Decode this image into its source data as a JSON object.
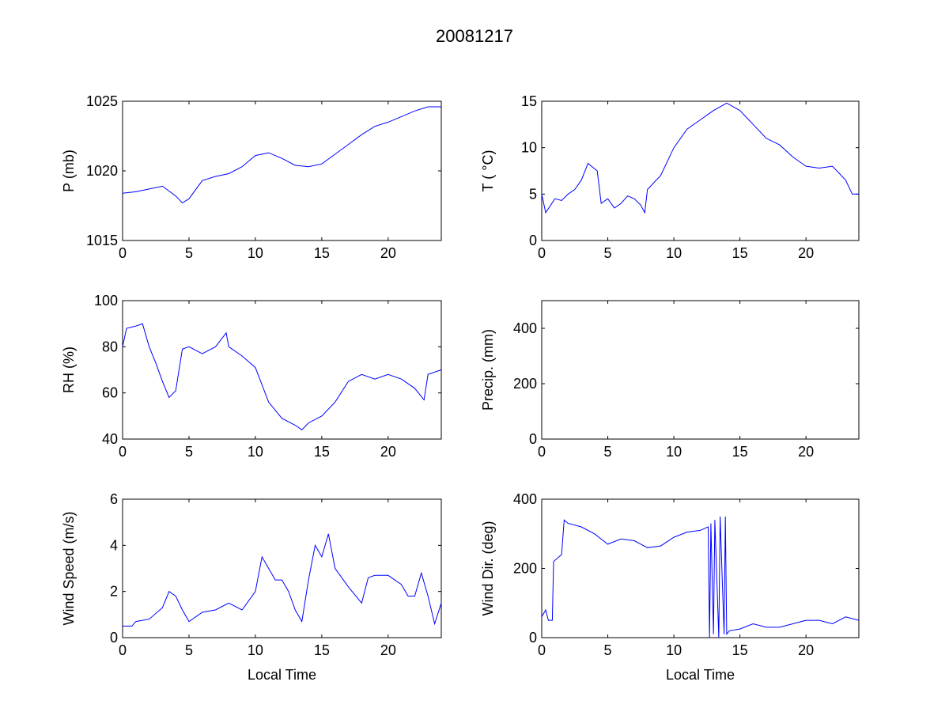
{
  "chart_data": {
    "title": "20081217",
    "type": "line",
    "line_color": "#0000ff",
    "subplots": [
      {
        "id": "pressure",
        "ylabel": "P (mb)",
        "xlabel": "",
        "xlim": [
          0,
          24
        ],
        "ylim": [
          1015,
          1025
        ],
        "xticks": [
          0,
          5,
          10,
          15,
          20
        ],
        "yticks": [
          1015,
          1020,
          1025
        ],
        "x": [
          0,
          1,
          2,
          3,
          4,
          4.5,
          5,
          6,
          7,
          8,
          9,
          10,
          11,
          12,
          13,
          14,
          15,
          16,
          17,
          18,
          19,
          20,
          21,
          22,
          23,
          24
        ],
        "y": [
          1018.4,
          1018.5,
          1018.7,
          1018.9,
          1018.2,
          1017.7,
          1018.0,
          1019.3,
          1019.6,
          1019.8,
          1020.3,
          1021.1,
          1021.3,
          1020.9,
          1020.4,
          1020.3,
          1020.5,
          1021.2,
          1021.9,
          1022.6,
          1023.2,
          1023.5,
          1023.9,
          1024.3,
          1024.6,
          1024.6
        ]
      },
      {
        "id": "temperature",
        "ylabel": "T ( °C)",
        "xlabel": "",
        "xlim": [
          0,
          24
        ],
        "ylim": [
          0,
          15
        ],
        "xticks": [
          0,
          5,
          10,
          15,
          20
        ],
        "yticks": [
          0,
          5,
          10,
          15
        ],
        "x": [
          0,
          0.3,
          1,
          1.5,
          2,
          2.5,
          3,
          3.5,
          4.2,
          4.5,
          5,
          5.5,
          6,
          6.5,
          7,
          7.5,
          7.8,
          8,
          9,
          10,
          11,
          12,
          13,
          14,
          15,
          16,
          17,
          18,
          19,
          20,
          21,
          22,
          23,
          23.5,
          24
        ],
        "y": [
          5,
          3,
          4.5,
          4.3,
          5,
          5.5,
          6.5,
          8.3,
          7.5,
          4,
          4.5,
          3.5,
          4,
          4.8,
          4.5,
          3.8,
          3,
          5.5,
          7,
          10,
          12,
          13,
          14,
          14.8,
          14,
          12.5,
          11,
          10.3,
          9,
          8,
          7.8,
          8,
          6.5,
          5,
          5
        ]
      },
      {
        "id": "humidity",
        "ylabel": "RH (%)",
        "xlabel": "",
        "xlim": [
          0,
          24
        ],
        "ylim": [
          40,
          100
        ],
        "xticks": [
          0,
          5,
          10,
          15,
          20
        ],
        "yticks": [
          40,
          60,
          80,
          100
        ],
        "x": [
          0,
          0.3,
          1,
          1.5,
          2,
          2.5,
          3,
          3.5,
          4,
          4.5,
          5,
          6,
          7,
          7.8,
          8,
          9,
          10,
          11,
          12,
          13,
          13.5,
          14,
          15,
          16,
          17,
          18,
          19,
          20,
          21,
          22,
          22.7,
          23,
          24
        ],
        "y": [
          80,
          88,
          89,
          90,
          80,
          73,
          65,
          58,
          61,
          79,
          80,
          77,
          80,
          86,
          80,
          76,
          71,
          56,
          49,
          46,
          44,
          47,
          50,
          56,
          65,
          68,
          66,
          68,
          66,
          62,
          57,
          68,
          70
        ]
      },
      {
        "id": "precipitation",
        "ylabel": "Precip. (mm)",
        "xlabel": "",
        "xlim": [
          0,
          24
        ],
        "ylim": [
          0,
          500
        ],
        "xticks": [
          0,
          5,
          10,
          15,
          20
        ],
        "yticks": [
          0,
          200,
          400
        ],
        "x": [],
        "y": []
      },
      {
        "id": "wind-speed",
        "ylabel": "Wind Speed (m/s)",
        "xlabel": "Local Time",
        "xlim": [
          0,
          24
        ],
        "ylim": [
          0,
          6
        ],
        "xticks": [
          0,
          5,
          10,
          15,
          20
        ],
        "yticks": [
          0,
          2,
          4,
          6
        ],
        "x": [
          0,
          0.7,
          1,
          2,
          3,
          3.5,
          4,
          4.5,
          5,
          6,
          7,
          8,
          9,
          10,
          10.5,
          11,
          11.5,
          12,
          12.5,
          13,
          13.5,
          14,
          14.5,
          15,
          15.5,
          16,
          17,
          18,
          18.5,
          19,
          20,
          21,
          21.5,
          22,
          22.5,
          23,
          23.5,
          24
        ],
        "y": [
          0.5,
          0.5,
          0.7,
          0.8,
          1.3,
          2.0,
          1.8,
          1.2,
          0.7,
          1.1,
          1.2,
          1.5,
          1.2,
          2.0,
          3.5,
          3.0,
          2.5,
          2.5,
          2.0,
          1.2,
          0.7,
          2.5,
          4.0,
          3.5,
          4.5,
          3.0,
          2.2,
          1.5,
          2.6,
          2.7,
          2.7,
          2.3,
          1.8,
          1.8,
          2.8,
          1.8,
          0.6,
          1.5
        ]
      },
      {
        "id": "wind-direction",
        "ylabel": "Wind Dir. (deg)",
        "xlabel": "Local Time",
        "xlim": [
          0,
          24
        ],
        "ylim": [
          0,
          400
        ],
        "xticks": [
          0,
          5,
          10,
          15,
          20
        ],
        "yticks": [
          0,
          200,
          400
        ],
        "x": [
          0,
          0.3,
          0.5,
          0.8,
          0.9,
          1.5,
          1.7,
          2,
          3,
          4,
          5,
          6,
          7,
          8,
          9,
          10,
          11,
          12,
          12.6,
          12.7,
          12.8,
          13,
          13.1,
          13.4,
          13.5,
          13.8,
          13.9,
          14,
          14.2,
          15,
          16,
          17,
          18,
          19,
          20,
          21,
          22,
          23,
          24
        ],
        "y": [
          60,
          80,
          50,
          50,
          220,
          240,
          340,
          330,
          320,
          300,
          270,
          285,
          280,
          260,
          265,
          290,
          305,
          310,
          320,
          0,
          330,
          10,
          340,
          0,
          350,
          10,
          350,
          10,
          20,
          25,
          40,
          30,
          30,
          40,
          50,
          50,
          40,
          60,
          50
        ]
      }
    ]
  }
}
